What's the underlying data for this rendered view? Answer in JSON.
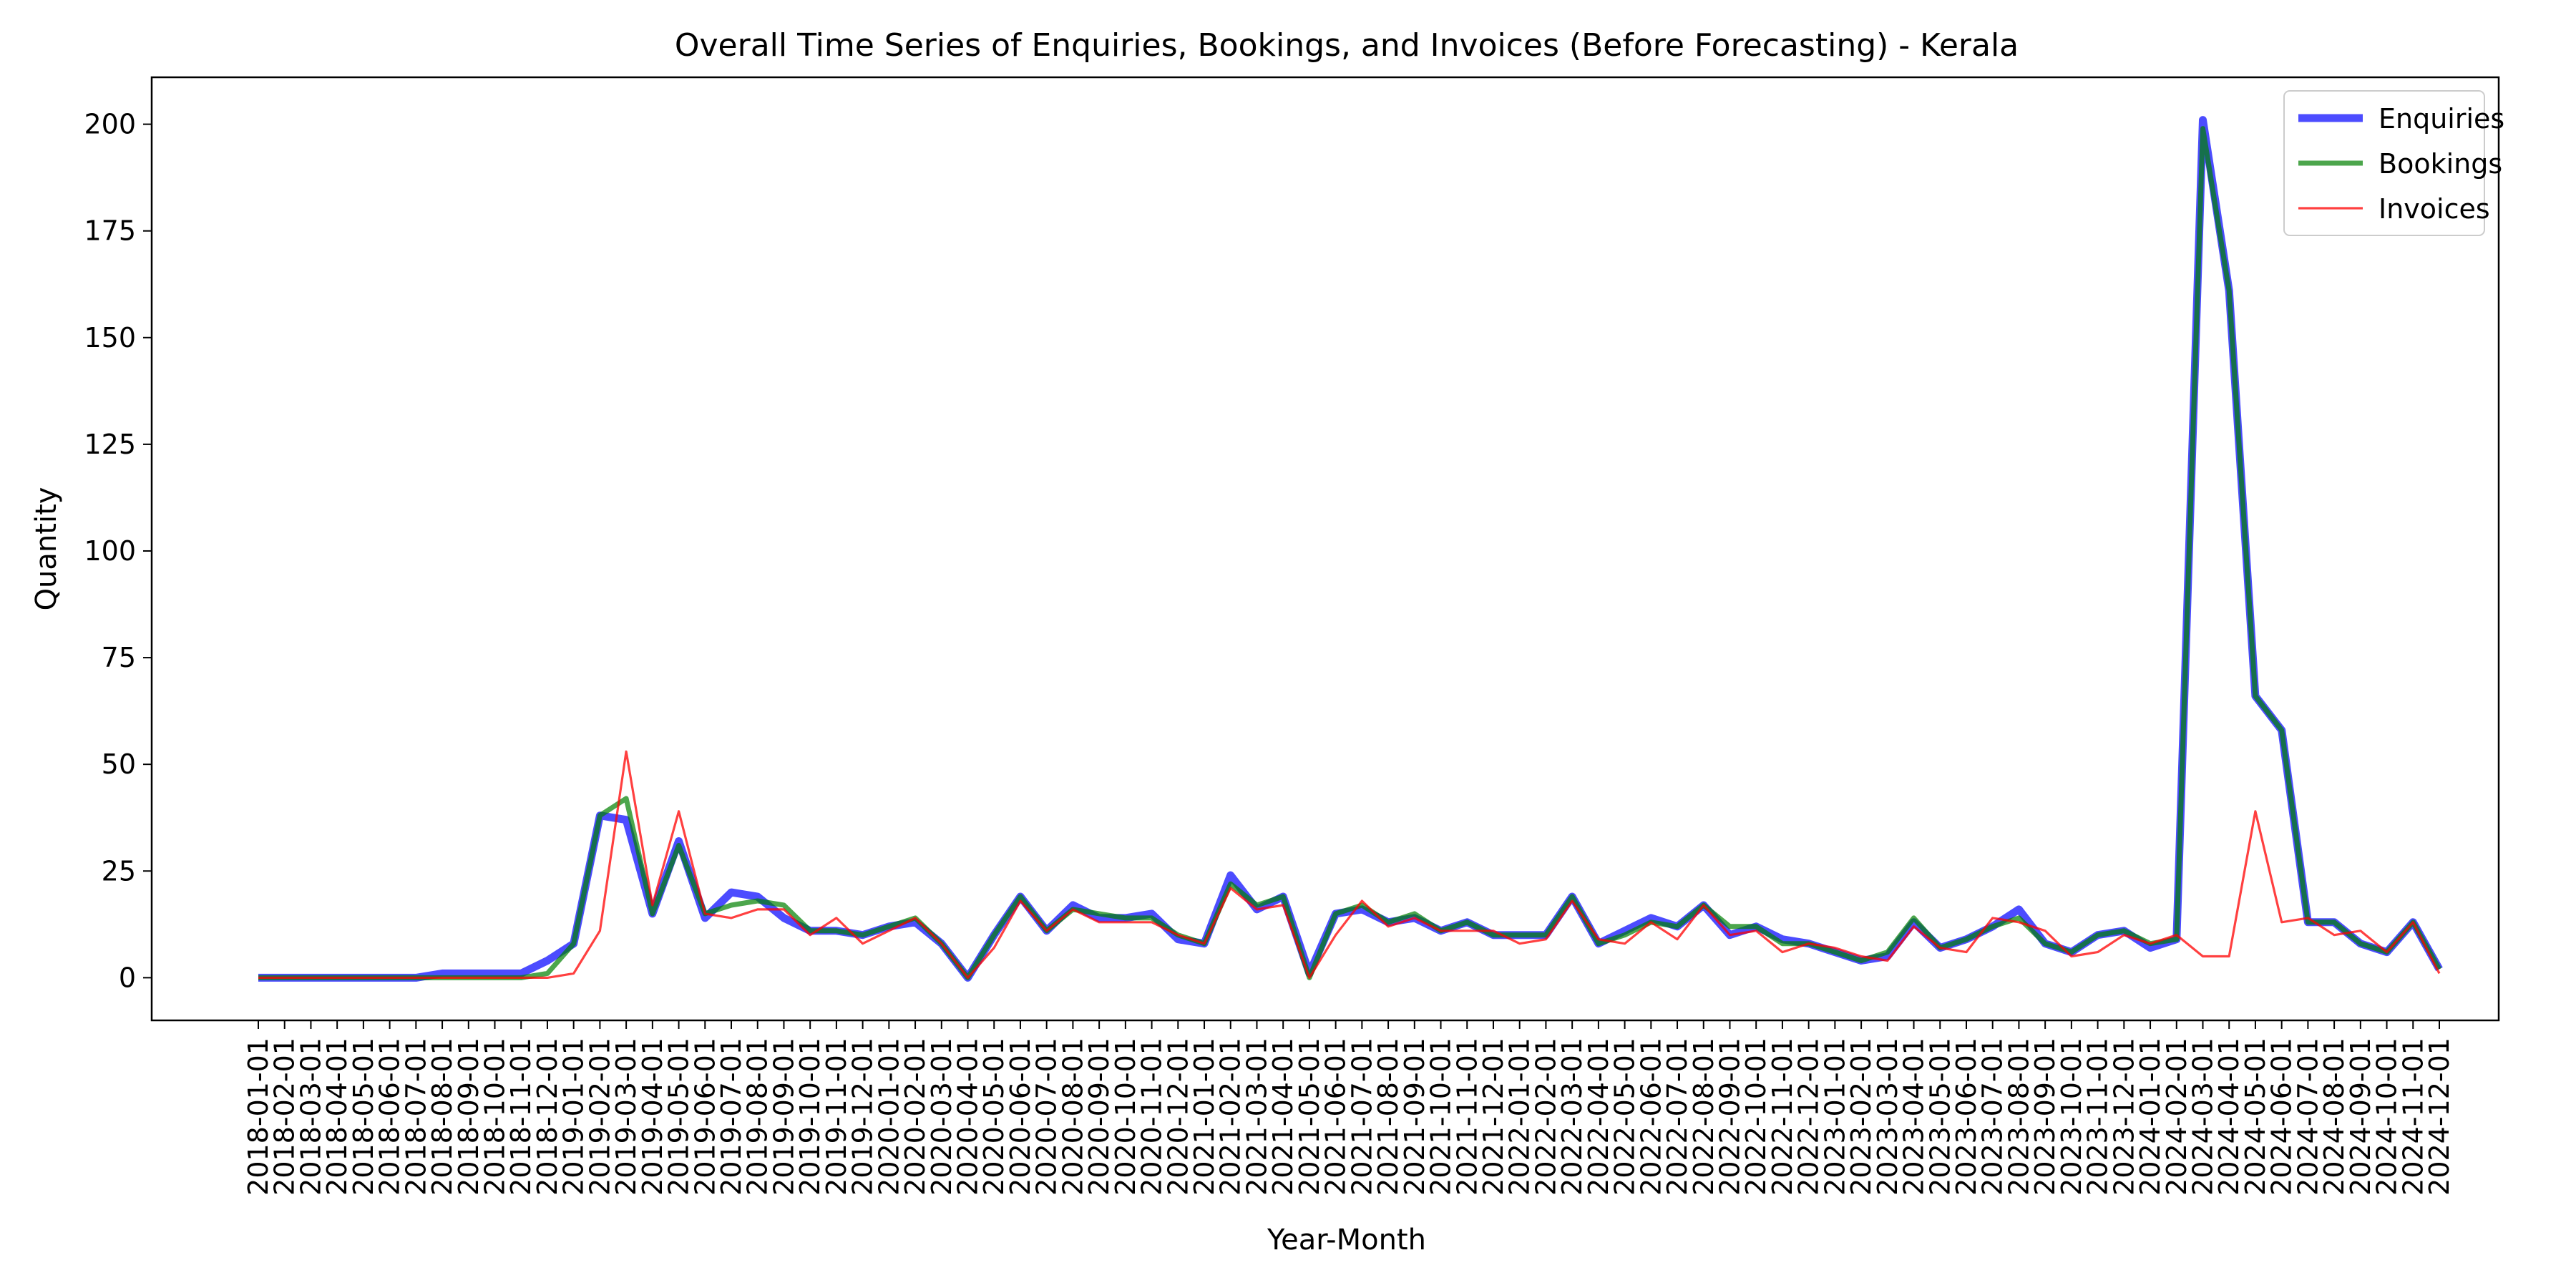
{
  "chart_data": {
    "type": "line",
    "title": "Overall Time Series of Enquiries, Bookings, and Invoices (Before Forecasting) - Kerala",
    "xlabel": "Year-Month",
    "ylabel": "Quantity",
    "ylim": [
      -10,
      211
    ],
    "yticks": [
      0,
      25,
      50,
      75,
      100,
      125,
      150,
      175,
      200
    ],
    "grid": false,
    "legend_position": "top-right",
    "x": [
      "2018-01-01",
      "2018-02-01",
      "2018-03-01",
      "2018-04-01",
      "2018-05-01",
      "2018-06-01",
      "2018-07-01",
      "2018-08-01",
      "2018-09-01",
      "2018-10-01",
      "2018-11-01",
      "2018-12-01",
      "2019-01-01",
      "2019-02-01",
      "2019-03-01",
      "2019-04-01",
      "2019-05-01",
      "2019-06-01",
      "2019-07-01",
      "2019-08-01",
      "2019-09-01",
      "2019-10-01",
      "2019-11-01",
      "2019-12-01",
      "2020-01-01",
      "2020-02-01",
      "2020-03-01",
      "2020-04-01",
      "2020-05-01",
      "2020-06-01",
      "2020-07-01",
      "2020-08-01",
      "2020-09-01",
      "2020-10-01",
      "2020-11-01",
      "2020-12-01",
      "2021-01-01",
      "2021-02-01",
      "2021-03-01",
      "2021-04-01",
      "2021-05-01",
      "2021-06-01",
      "2021-07-01",
      "2021-08-01",
      "2021-09-01",
      "2021-10-01",
      "2021-11-01",
      "2021-12-01",
      "2022-01-01",
      "2022-02-01",
      "2022-03-01",
      "2022-04-01",
      "2022-05-01",
      "2022-06-01",
      "2022-07-01",
      "2022-08-01",
      "2022-09-01",
      "2022-10-01",
      "2022-11-01",
      "2022-12-01",
      "2023-01-01",
      "2023-02-01",
      "2023-03-01",
      "2023-04-01",
      "2023-05-01",
      "2023-06-01",
      "2023-07-01",
      "2023-08-01",
      "2023-09-01",
      "2023-10-01",
      "2023-11-01",
      "2023-12-01",
      "2024-01-01",
      "2024-02-01",
      "2024-03-01",
      "2024-04-01",
      "2024-05-01",
      "2024-06-01",
      "2024-07-01",
      "2024-08-01",
      "2024-09-01",
      "2024-10-01",
      "2024-11-01",
      "2024-12-01"
    ],
    "series": [
      {
        "name": "Enquiries",
        "color": "#0000ff",
        "opacity": 0.7,
        "values": [
          0,
          0,
          0,
          0,
          0,
          0,
          0,
          1,
          1,
          1,
          1,
          4,
          8,
          38,
          37,
          15,
          32,
          14,
          20,
          19,
          14,
          11,
          11,
          10,
          12,
          13,
          8,
          0,
          10,
          19,
          11,
          17,
          14,
          14,
          15,
          9,
          8,
          24,
          16,
          19,
          1,
          15,
          16,
          13,
          14,
          11,
          13,
          10,
          10,
          10,
          19,
          8,
          11,
          14,
          12,
          17,
          10,
          12,
          9,
          8,
          6,
          4,
          5,
          13,
          7,
          9,
          12,
          16,
          8,
          6,
          10,
          11,
          7,
          9,
          201,
          161,
          66,
          58,
          13,
          13,
          8,
          6,
          13,
          2
        ]
      },
      {
        "name": "Bookings",
        "color": "#008000",
        "opacity": 0.7,
        "values": [
          0,
          0,
          0,
          0,
          0,
          0,
          0,
          0,
          0,
          0,
          0,
          1,
          8,
          38,
          42,
          15,
          31,
          15,
          17,
          18,
          17,
          11,
          11,
          10,
          12,
          14,
          8,
          0,
          10,
          19,
          11,
          16,
          15,
          14,
          14,
          10,
          8,
          22,
          17,
          19,
          0,
          15,
          17,
          13,
          15,
          11,
          13,
          10,
          10,
          10,
          19,
          8,
          10,
          13,
          12,
          17,
          12,
          12,
          8,
          8,
          6,
          4,
          6,
          14,
          7,
          9,
          12,
          14,
          8,
          6,
          10,
          11,
          8,
          9,
          199,
          161,
          66,
          58,
          13,
          13,
          8,
          6,
          13,
          2
        ]
      },
      {
        "name": "Invoices",
        "color": "#ff0000",
        "opacity": 0.75,
        "values": [
          0,
          0,
          0,
          0,
          0,
          0,
          0,
          0,
          0,
          0,
          0,
          0,
          1,
          11,
          53,
          17,
          39,
          15,
          14,
          16,
          16,
          10,
          14,
          8,
          11,
          14,
          8,
          0,
          7,
          18,
          11,
          16,
          13,
          13,
          13,
          10,
          8,
          21,
          16,
          17,
          0,
          10,
          18,
          12,
          14,
          11,
          11,
          11,
          8,
          9,
          18,
          9,
          8,
          13,
          9,
          17,
          10,
          11,
          6,
          8,
          7,
          5,
          4,
          12,
          7,
          6,
          14,
          13,
          11,
          5,
          6,
          10,
          8,
          10,
          5,
          5,
          39,
          13,
          14,
          10,
          11,
          6,
          13,
          1
        ]
      }
    ]
  }
}
